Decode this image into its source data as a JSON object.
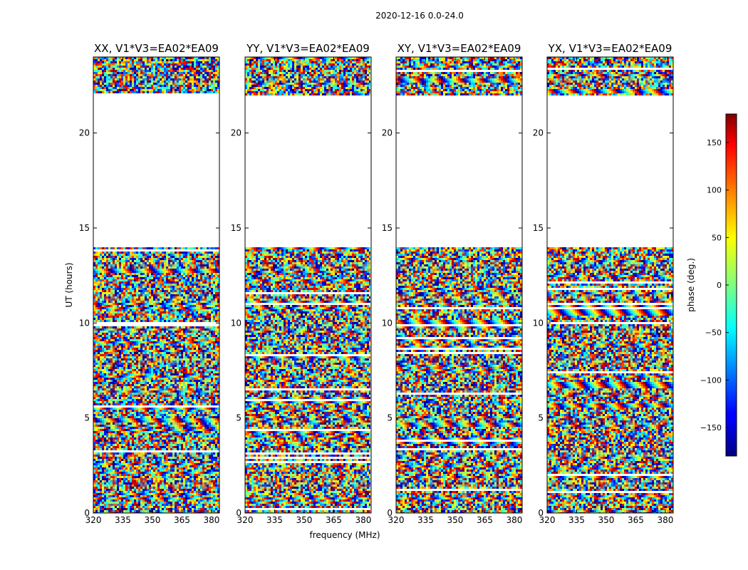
{
  "figure": {
    "suptitle": "2020-12-16 0.0-24.0",
    "xlabel": "frequency (MHz)",
    "ylabel": "UT (hours)",
    "colorbar_label": "phase (deg.)",
    "colorbar_ticks": [
      "150",
      "100",
      "50",
      "0",
      "−50",
      "−100",
      "−150"
    ],
    "colorbar_tick_values": [
      150,
      100,
      50,
      0,
      -50,
      -100,
      -150
    ],
    "colorbar_range": [
      -180,
      180
    ],
    "colormap": "jet"
  },
  "chart_data": [
    {
      "type": "heatmap",
      "title": "XX, V1*V3=EA02*EA09",
      "x_ticks": [
        "320",
        "335",
        "350",
        "365",
        "380"
      ],
      "y_ticks": [
        "0",
        "5",
        "10",
        "15",
        "20"
      ]
    },
    {
      "type": "heatmap",
      "title": "YY, V1*V3=EA02*EA09",
      "x_ticks": [
        "320",
        "335",
        "350",
        "365",
        "380"
      ],
      "y_ticks": [
        "0",
        "5",
        "10",
        "15",
        "20"
      ]
    },
    {
      "type": "heatmap",
      "title": "XY, V1*V3=EA02*EA09",
      "x_ticks": [
        "320",
        "335",
        "350",
        "365",
        "380"
      ],
      "y_ticks": [
        "0",
        "5",
        "10",
        "15",
        "20"
      ]
    },
    {
      "type": "heatmap",
      "title": "YX, V1*V3=EA02*EA09",
      "x_ticks": [
        "320",
        "335",
        "350",
        "365",
        "380"
      ],
      "y_ticks": [
        "0",
        "5",
        "10",
        "15",
        "20"
      ]
    }
  ],
  "chart_axes": {
    "x_tick_values": [
      320,
      335,
      350,
      365,
      380
    ],
    "y_tick_values": [
      0,
      5,
      10,
      15,
      20
    ],
    "xlim": [
      320,
      384
    ],
    "ylim": [
      0,
      24
    ],
    "data_gaps_hours": [
      [
        14.0,
        22.0
      ]
    ]
  }
}
